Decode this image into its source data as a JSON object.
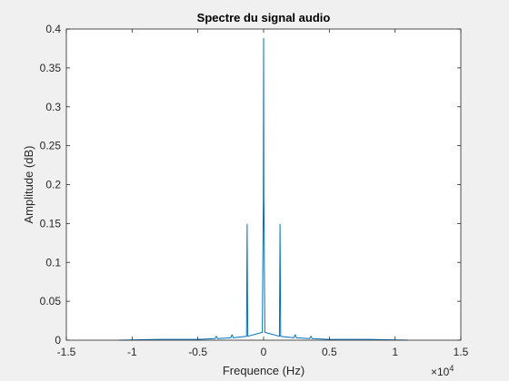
{
  "chart_data": {
    "type": "line",
    "title": "Spectre du signal audio",
    "xlabel": "Frequence (Hz)",
    "ylabel": "Amplitude (dB)",
    "xlim": [
      -15000,
      15000
    ],
    "ylim": [
      0,
      0.4
    ],
    "xticks": [
      -15000,
      -10000,
      -5000,
      0,
      5000,
      10000,
      15000
    ],
    "xtick_labels": [
      "-1.5",
      "-1",
      "-0.5",
      "0",
      "0.5",
      "1",
      "1.5"
    ],
    "x_exponent_label": "×10",
    "x_exponent_power": "4",
    "yticks": [
      0,
      0.05,
      0.1,
      0.15,
      0.2,
      0.25,
      0.3,
      0.35,
      0.4
    ],
    "ytick_labels": [
      "0",
      "0.05",
      "0.1",
      "0.15",
      "0.2",
      "0.25",
      "0.3",
      "0.35",
      "0.4"
    ],
    "grid": false,
    "series": [
      {
        "color": "#0072bd",
        "x": [
          -11000,
          -8000,
          -5000,
          -3700,
          -3600,
          -3500,
          -2500,
          -2400,
          -2300,
          -1300,
          -1250,
          -1200,
          -100,
          -20,
          0,
          20,
          100,
          1200,
          1250,
          1300,
          2300,
          2400,
          2500,
          3500,
          3600,
          3700,
          5000,
          8000,
          11000
        ],
        "y": [
          0,
          0.001,
          0.001,
          0.002,
          0.005,
          0.002,
          0.003,
          0.007,
          0.003,
          0.005,
          0.149,
          0.005,
          0.01,
          0.183,
          0.388,
          0.183,
          0.01,
          0.005,
          0.149,
          0.005,
          0.003,
          0.007,
          0.003,
          0.002,
          0.005,
          0.002,
          0.001,
          0.001,
          0
        ]
      }
    ]
  }
}
